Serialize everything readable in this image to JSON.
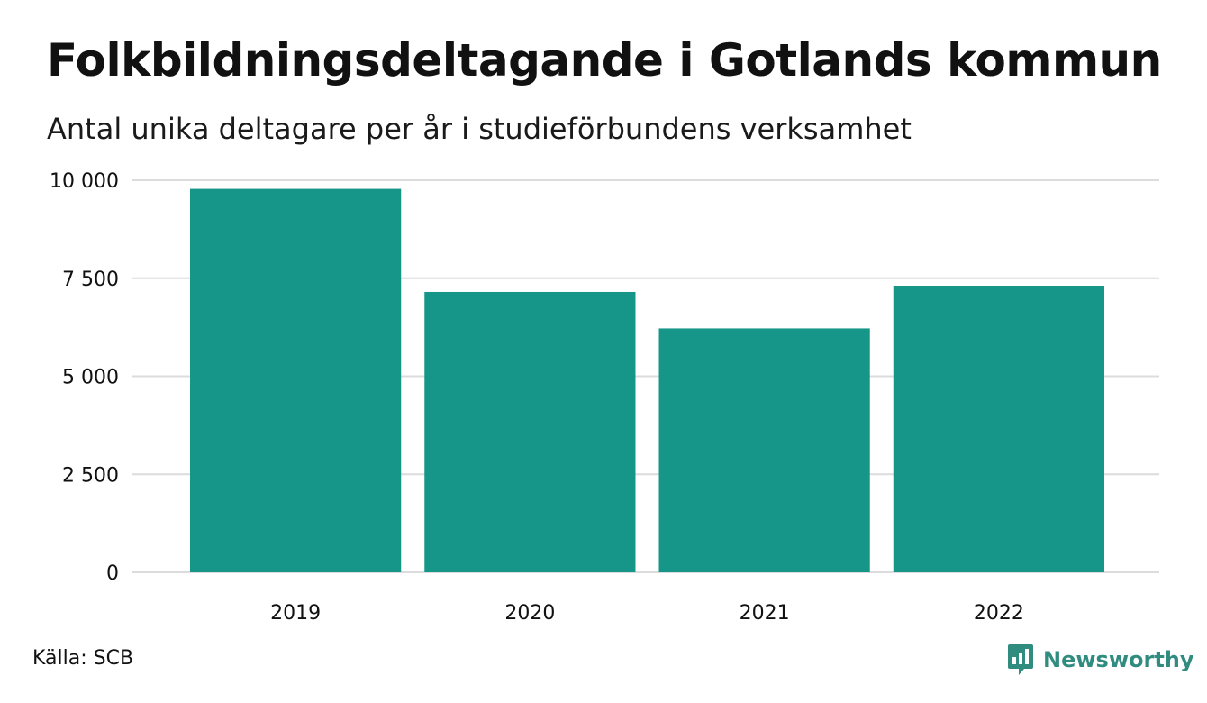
{
  "header": {
    "title": "Folkbildningsdeltagande i Gotlands kommun",
    "subtitle": "Antal unika deltagare per år i studieförbundens verksamhet"
  },
  "footer": {
    "source": "Källa: SCB",
    "brand": "Newsworthy"
  },
  "colors": {
    "bar": "#159688",
    "grid": "#dcdcdc",
    "brand": "#2f8c7f"
  },
  "chart_data": {
    "type": "bar",
    "categories": [
      "2019",
      "2020",
      "2021",
      "2022"
    ],
    "values": [
      9780,
      7150,
      6220,
      7310
    ],
    "title": "Folkbildningsdeltagande i Gotlands kommun",
    "subtitle": "Antal unika deltagare per år i studieförbundens verksamhet",
    "xlabel": "",
    "ylabel": "",
    "ylim": [
      0,
      10000
    ],
    "yticks": [
      0,
      2500,
      5000,
      7500,
      10000
    ],
    "ytick_labels": [
      "0",
      "2 500",
      "5 000",
      "7 500",
      "10 000"
    ],
    "grid": true,
    "legend": "none"
  }
}
